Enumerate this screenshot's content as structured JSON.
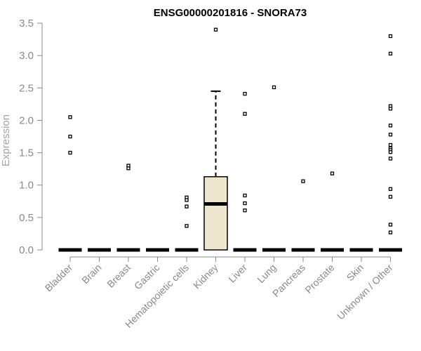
{
  "chart_data": {
    "type": "boxplot",
    "title": "ENSG00000201816 - SNORA73",
    "ylabel": "Expression",
    "xlabel": "",
    "ylim": [
      0,
      3.5
    ],
    "yticks": [
      "0.0",
      "0.5",
      "1.0",
      "1.5",
      "2.0",
      "2.5",
      "3.0",
      "3.5"
    ],
    "categories": [
      "Bladder",
      "Brain",
      "Breast",
      "Gastric",
      "Hematopoietic cells",
      "Kidney",
      "Liver",
      "Lung",
      "Pancreas",
      "Prostate",
      "Skin",
      "Unknown / Other"
    ],
    "box_fill": "#ede7cf",
    "boxes": [
      {
        "category": "Bladder",
        "q1": 0,
        "median": 0,
        "q3": 0,
        "whisker_low": 0,
        "whisker_high": 0,
        "outliers": [
          2.05,
          1.75,
          1.5
        ]
      },
      {
        "category": "Brain",
        "q1": 0,
        "median": 0,
        "q3": 0,
        "whisker_low": 0,
        "whisker_high": 0,
        "outliers": []
      },
      {
        "category": "Breast",
        "q1": 0,
        "median": 0,
        "q3": 0,
        "whisker_low": 0,
        "whisker_high": 0,
        "outliers": [
          1.3,
          1.26
        ]
      },
      {
        "category": "Gastric",
        "q1": 0,
        "median": 0,
        "q3": 0,
        "whisker_low": 0,
        "whisker_high": 0,
        "outliers": []
      },
      {
        "category": "Hematopoietic cells",
        "q1": 0,
        "median": 0,
        "q3": 0,
        "whisker_low": 0,
        "whisker_high": 0,
        "outliers": [
          0.81,
          0.77,
          0.67,
          0.37
        ]
      },
      {
        "category": "Kidney",
        "q1": 0,
        "median": 0.71,
        "q3": 1.13,
        "whisker_low": 0,
        "whisker_high": 2.45,
        "outliers": [
          3.4
        ]
      },
      {
        "category": "Liver",
        "q1": 0,
        "median": 0,
        "q3": 0,
        "whisker_low": 0,
        "whisker_high": 0,
        "outliers": [
          2.41,
          2.1,
          0.84,
          0.72,
          0.61
        ]
      },
      {
        "category": "Lung",
        "q1": 0,
        "median": 0,
        "q3": 0,
        "whisker_low": 0,
        "whisker_high": 0,
        "outliers": [
          2.51
        ]
      },
      {
        "category": "Pancreas",
        "q1": 0,
        "median": 0,
        "q3": 0,
        "whisker_low": 0,
        "whisker_high": 0,
        "outliers": [
          1.06
        ]
      },
      {
        "category": "Prostate",
        "q1": 0,
        "median": 0,
        "q3": 0,
        "whisker_low": 0,
        "whisker_high": 0,
        "outliers": [
          1.18
        ]
      },
      {
        "category": "Skin",
        "q1": 0,
        "median": 0,
        "q3": 0,
        "whisker_low": 0,
        "whisker_high": 0,
        "outliers": []
      },
      {
        "category": "Unknown / Other",
        "q1": 0,
        "median": 0,
        "q3": 0,
        "whisker_low": 0,
        "whisker_high": 0,
        "outliers": [
          3.3,
          3.03,
          2.22,
          2.18,
          1.92,
          1.78,
          1.62,
          1.57,
          1.54,
          1.51,
          1.41,
          0.94,
          0.82,
          0.39,
          0.27
        ]
      }
    ]
  }
}
